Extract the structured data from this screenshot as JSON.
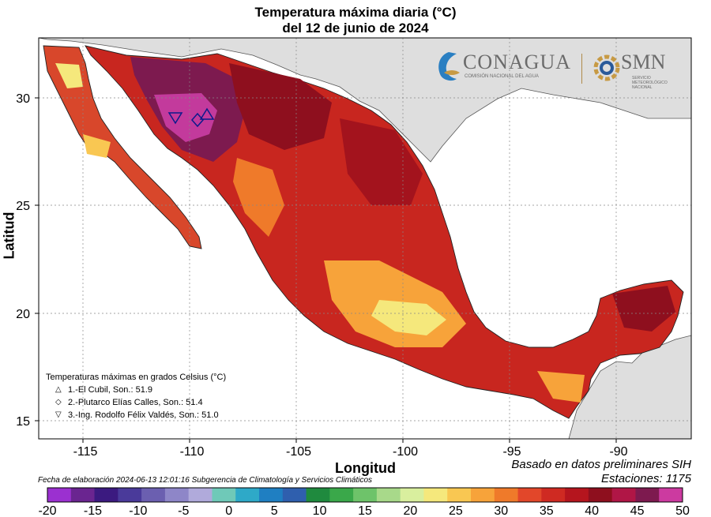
{
  "title_line1": "Temperatura máxima diaria (°C)",
  "title_line2": "del 12 de junio de 2024",
  "logos": {
    "conagua": "CONAGUA",
    "conagua_sub": "COMISIÓN NACIONAL DEL AGUA",
    "smn": "SMN",
    "smn_sub": "SERVICIO METEOROLÓGICO NACIONAL"
  },
  "axes": {
    "xlabel": "Longitud",
    "ylabel": "Latitud",
    "x_ticks": [
      "-115",
      "-110",
      "-105",
      "-100",
      "-95",
      "-90"
    ],
    "y_ticks": [
      "15",
      "20",
      "25",
      "30"
    ]
  },
  "legend": {
    "title": "Temperaturas máximas en grados Celsius (°C)",
    "items": [
      {
        "symbol": "△",
        "text": "1.-El Cubil, Son.: 51.9"
      },
      {
        "symbol": "◇",
        "text": "2.-Plutarco Elías Calles, Son.: 51.4"
      },
      {
        "symbol": "▽",
        "text": "3.-Ing. Rodolfo Félix Valdés, Son.: 51.0"
      }
    ]
  },
  "notes": {
    "basado": "Basado en datos preliminares SIH",
    "estaciones": "Estaciones:  1175",
    "fecha": "Fecha de elaboración 2024-06-13 12:01:16 Subgerencia de Climatología y Servicios Climáticos"
  },
  "colorbar": {
    "labels": [
      "-20",
      "-15",
      "-10",
      "-5",
      "0",
      "5",
      "10",
      "15",
      "20",
      "25",
      "30",
      "35",
      "40",
      "45",
      "50"
    ],
    "colors": [
      "#9b30d0",
      "#6a2590",
      "#3b1a80",
      "#4a3a9a",
      "#6b5fb0",
      "#8e86c8",
      "#b0aadb",
      "#6fc9b8",
      "#2ea9c8",
      "#1f7fc2",
      "#2f5fae",
      "#1f8a3e",
      "#3aa84a",
      "#6ec36a",
      "#a8d98a",
      "#d9ef9e",
      "#f5e87c",
      "#f9c752",
      "#f7a33a",
      "#ef7a2a",
      "#e2472a",
      "#cf2a22",
      "#b5151e",
      "#8e0f1e",
      "#b01646",
      "#7d1a4f",
      "#cc3aa0"
    ]
  }
}
